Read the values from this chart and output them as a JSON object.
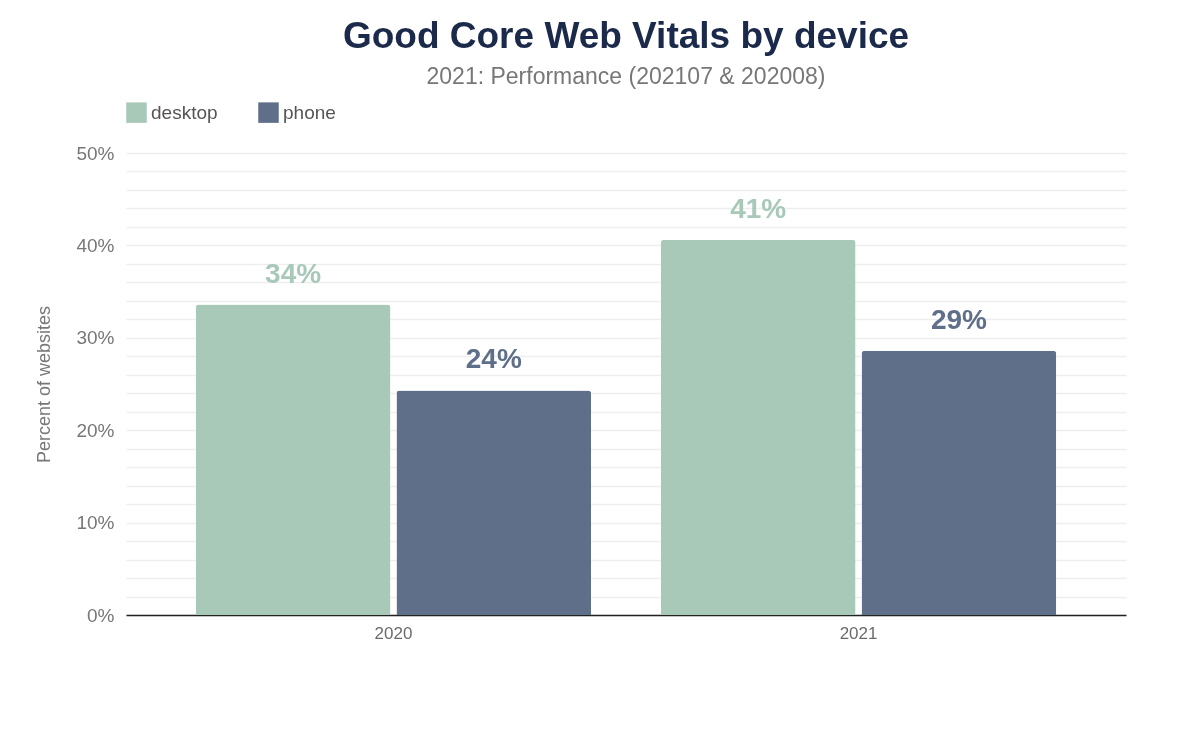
{
  "chart_data": {
    "type": "bar",
    "title": "Good Core Web Vitals by device",
    "subtitle": "2021: Performance (202107 & 202008)",
    "ylabel": "Percent of websites",
    "categories": [
      "2020",
      "2021"
    ],
    "series": [
      {
        "name": "desktop",
        "color": "#a8c9b8",
        "values": [
          33.6,
          40.6
        ],
        "value_labels": [
          "34%",
          "41%"
        ]
      },
      {
        "name": "phone",
        "color": "#5f6f8a",
        "values": [
          24.3,
          28.6
        ],
        "value_labels": [
          "24%",
          "29%"
        ]
      }
    ],
    "ylim": [
      0,
      50
    ],
    "yticks": [
      {
        "value": 0,
        "label": "0%"
      },
      {
        "value": 2,
        "label": null
      },
      {
        "value": 4,
        "label": null
      },
      {
        "value": 6,
        "label": null
      },
      {
        "value": 8,
        "label": null
      },
      {
        "value": 10,
        "label": "10%"
      },
      {
        "value": 12,
        "label": null
      },
      {
        "value": 14,
        "label": null
      },
      {
        "value": 16,
        "label": null
      },
      {
        "value": 18,
        "label": null
      },
      {
        "value": 20,
        "label": "20%"
      },
      {
        "value": 22,
        "label": null
      },
      {
        "value": 24,
        "label": null
      },
      {
        "value": 26,
        "label": null
      },
      {
        "value": 28,
        "label": null
      },
      {
        "value": 30,
        "label": "30%"
      },
      {
        "value": 32,
        "label": null
      },
      {
        "value": 34,
        "label": null
      },
      {
        "value": 36,
        "label": null
      },
      {
        "value": 38,
        "label": null
      },
      {
        "value": 40,
        "label": "40%"
      },
      {
        "value": 42,
        "label": null
      },
      {
        "value": 44,
        "label": null
      },
      {
        "value": 46,
        "label": null
      },
      {
        "value": 48,
        "label": null
      },
      {
        "value": 50,
        "label": "50%"
      }
    ],
    "grid": "y",
    "legend": "top"
  }
}
